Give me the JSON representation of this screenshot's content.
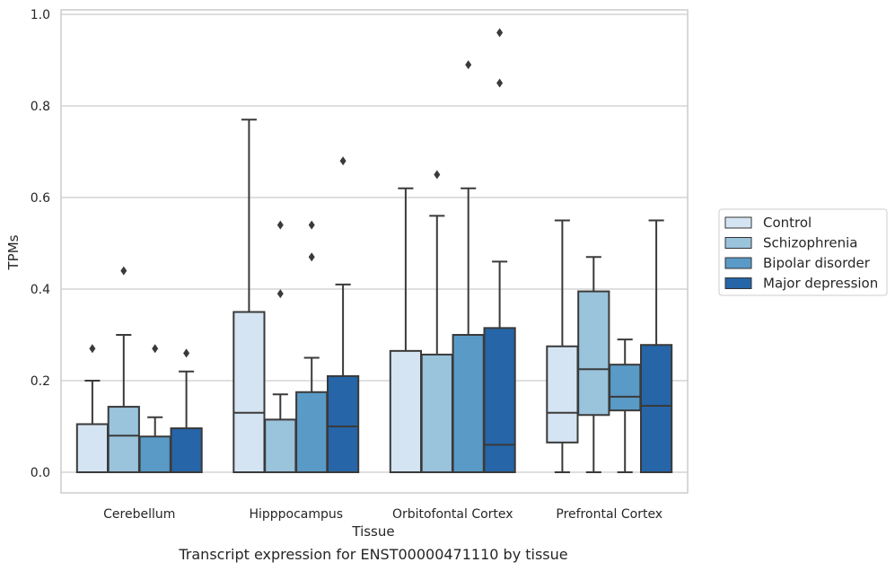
{
  "chart_data": {
    "type": "box",
    "title": "Transcript expression for ENST00000471110 by tissue",
    "xlabel": "Tissue",
    "ylabel": "TPMs",
    "ylim": [
      -0.045,
      1.01
    ],
    "yticks": [
      "0.0",
      "0.2",
      "0.4",
      "0.6",
      "0.8",
      "1.0"
    ],
    "grid": "horizontal",
    "legend_position": "right",
    "categories": [
      "Cerebellum",
      "Hipppocampus",
      "Orbitofontal Cortex",
      "Prefrontal Cortex"
    ],
    "series": [
      {
        "name": "Control",
        "color": "#d4e4f2",
        "boxes": [
          {
            "q1": 0.0,
            "median": 0.0,
            "q3": 0.105,
            "whisker_low": 0.0,
            "whisker_high": 0.2,
            "outliers": [
              0.27
            ]
          },
          {
            "q1": 0.0,
            "median": 0.13,
            "q3": 0.35,
            "whisker_low": 0.0,
            "whisker_high": 0.77,
            "outliers": []
          },
          {
            "q1": 0.0,
            "median": 0.0,
            "q3": 0.265,
            "whisker_low": 0.0,
            "whisker_high": 0.62,
            "outliers": []
          },
          {
            "q1": 0.065,
            "median": 0.13,
            "q3": 0.275,
            "whisker_low": 0.0,
            "whisker_high": 0.55,
            "outliers": []
          }
        ]
      },
      {
        "name": "Schizophrenia",
        "color": "#9ac3dc",
        "boxes": [
          {
            "q1": 0.0,
            "median": 0.08,
            "q3": 0.143,
            "whisker_low": 0.0,
            "whisker_high": 0.3,
            "outliers": [
              0.44
            ]
          },
          {
            "q1": 0.0,
            "median": 0.0,
            "q3": 0.115,
            "whisker_low": 0.0,
            "whisker_high": 0.17,
            "outliers": [
              0.39,
              0.54
            ]
          },
          {
            "q1": 0.0,
            "median": 0.0,
            "q3": 0.257,
            "whisker_low": 0.0,
            "whisker_high": 0.56,
            "outliers": [
              0.65
            ]
          },
          {
            "q1": 0.125,
            "median": 0.225,
            "q3": 0.395,
            "whisker_low": 0.0,
            "whisker_high": 0.47,
            "outliers": []
          }
        ]
      },
      {
        "name": "Bipolar disorder",
        "color": "#5a9ac6",
        "boxes": [
          {
            "q1": 0.0,
            "median": 0.0,
            "q3": 0.078,
            "whisker_low": 0.0,
            "whisker_high": 0.12,
            "outliers": [
              0.27
            ]
          },
          {
            "q1": 0.0,
            "median": 0.0,
            "q3": 0.175,
            "whisker_low": 0.0,
            "whisker_high": 0.25,
            "outliers": [
              0.47,
              0.54
            ]
          },
          {
            "q1": 0.0,
            "median": 0.0,
            "q3": 0.3,
            "whisker_low": 0.0,
            "whisker_high": 0.62,
            "outliers": [
              0.89
            ]
          },
          {
            "q1": 0.135,
            "median": 0.165,
            "q3": 0.235,
            "whisker_low": 0.0,
            "whisker_high": 0.29,
            "outliers": []
          }
        ]
      },
      {
        "name": "Major depression",
        "color": "#2565a8",
        "boxes": [
          {
            "q1": 0.0,
            "median": 0.0,
            "q3": 0.096,
            "whisker_low": 0.0,
            "whisker_high": 0.22,
            "outliers": [
              0.26
            ]
          },
          {
            "q1": 0.0,
            "median": 0.1,
            "q3": 0.21,
            "whisker_low": 0.0,
            "whisker_high": 0.41,
            "outliers": [
              0.68
            ]
          },
          {
            "q1": 0.0,
            "median": 0.06,
            "q3": 0.315,
            "whisker_low": 0.0,
            "whisker_high": 0.46,
            "outliers": [
              0.85,
              0.96
            ]
          },
          {
            "q1": 0.0,
            "median": 0.145,
            "q3": 0.278,
            "whisker_low": 0.0,
            "whisker_high": 0.55,
            "outliers": []
          }
        ]
      }
    ]
  }
}
